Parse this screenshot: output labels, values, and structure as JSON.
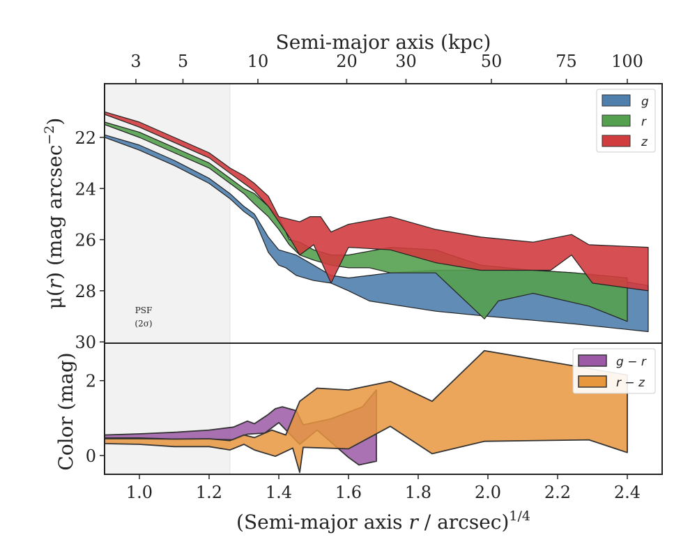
{
  "chart_data": [
    {
      "type": "area",
      "panel": "surface-brightness",
      "top_axis_label": "Semi-major axis (kpc)",
      "top_ticks": [
        {
          "label": "3",
          "x": 0.99
        },
        {
          "label": "5",
          "x": 1.125
        },
        {
          "label": "10",
          "x": 1.34
        },
        {
          "label": "20",
          "x": 1.595
        },
        {
          "label": "30",
          "x": 1.765
        },
        {
          "label": "50",
          "x": 2.01
        },
        {
          "label": "75",
          "x": 2.225
        },
        {
          "label": "100",
          "x": 2.4
        }
      ],
      "ylabel_main": "μ(",
      "ylabel_var": "r",
      "ylabel_rest": ") (mag arcsec",
      "ylabel_exp": "−2",
      "ylabel_close": ")",
      "yticks": [
        "22",
        "24",
        "26",
        "28",
        "30"
      ],
      "ylim": [
        30.05,
        19.9
      ],
      "xlim": [
        0.9,
        2.5
      ],
      "psf_band": {
        "x_max": 1.26,
        "label_line1": "PSF",
        "label_line2": "(2σ)"
      },
      "legend": {
        "position": "top-right",
        "entries": [
          "g",
          "r",
          "z"
        ]
      },
      "colors": {
        "g": "#4f7fad",
        "r": "#55a04f",
        "z": "#d13c3f"
      },
      "series": [
        {
          "name": "g",
          "upper": [
            [
              0.9,
              21.9
            ],
            [
              1.0,
              22.3
            ],
            [
              1.1,
              22.9
            ],
            [
              1.2,
              23.6
            ],
            [
              1.26,
              24.2
            ],
            [
              1.3,
              24.7
            ],
            [
              1.33,
              25.0
            ],
            [
              1.37,
              25.9
            ],
            [
              1.4,
              26.4
            ],
            [
              1.45,
              26.6
            ],
            [
              1.5,
              27.0
            ],
            [
              1.55,
              27.4
            ],
            [
              1.6,
              27.5
            ],
            [
              1.66,
              27.4
            ],
            [
              1.72,
              27.3
            ],
            [
              1.85,
              27.2
            ],
            [
              1.98,
              27.2
            ],
            [
              2.13,
              27.2
            ],
            [
              2.25,
              27.3
            ],
            [
              2.46,
              27.8
            ]
          ],
          "lower": [
            [
              2.46,
              29.6
            ],
            [
              2.25,
              29.3
            ],
            [
              2.0,
              29.0
            ],
            [
              1.85,
              28.8
            ],
            [
              1.66,
              28.4
            ],
            [
              1.6,
              28.0
            ],
            [
              1.55,
              27.7
            ],
            [
              1.5,
              27.6
            ],
            [
              1.45,
              27.4
            ],
            [
              1.42,
              27.1
            ],
            [
              1.4,
              27.0
            ],
            [
              1.37,
              26.5
            ],
            [
              1.33,
              25.2
            ],
            [
              1.3,
              24.9
            ],
            [
              1.26,
              24.4
            ],
            [
              1.2,
              23.8
            ],
            [
              1.1,
              23.1
            ],
            [
              1.0,
              22.5
            ],
            [
              0.9,
              22.0
            ]
          ]
        },
        {
          "name": "r",
          "upper": [
            [
              0.9,
              21.4
            ],
            [
              1.0,
              21.8
            ],
            [
              1.1,
              22.4
            ],
            [
              1.2,
              23.0
            ],
            [
              1.26,
              23.6
            ],
            [
              1.3,
              24.0
            ],
            [
              1.33,
              24.2
            ],
            [
              1.37,
              24.7
            ],
            [
              1.4,
              25.1
            ],
            [
              1.43,
              26.0
            ],
            [
              1.46,
              26.1
            ],
            [
              1.5,
              26.4
            ],
            [
              1.55,
              26.6
            ],
            [
              1.6,
              26.6
            ],
            [
              1.72,
              26.3
            ],
            [
              1.85,
              26.4
            ],
            [
              1.98,
              27.0
            ],
            [
              2.13,
              27.2
            ],
            [
              2.25,
              27.3
            ],
            [
              2.4,
              27.5
            ]
          ],
          "lower": [
            [
              2.4,
              29.2
            ],
            [
              2.29,
              28.6
            ],
            [
              2.13,
              28.1
            ],
            [
              2.03,
              28.4
            ],
            [
              1.99,
              29.1
            ],
            [
              1.85,
              27.3
            ],
            [
              1.72,
              27.3
            ],
            [
              1.66,
              27.1
            ],
            [
              1.6,
              27.1
            ],
            [
              1.55,
              27.0
            ],
            [
              1.5,
              26.8
            ],
            [
              1.46,
              26.6
            ],
            [
              1.43,
              26.2
            ],
            [
              1.4,
              25.6
            ],
            [
              1.37,
              25.1
            ],
            [
              1.33,
              24.6
            ],
            [
              1.3,
              24.2
            ],
            [
              1.26,
              23.8
            ],
            [
              1.2,
              23.2
            ],
            [
              1.1,
              22.6
            ],
            [
              1.0,
              22.0
            ],
            [
              0.9,
              21.5
            ]
          ]
        },
        {
          "name": "z",
          "upper": [
            [
              0.9,
              21.0
            ],
            [
              1.0,
              21.4
            ],
            [
              1.1,
              22.0
            ],
            [
              1.2,
              22.6
            ],
            [
              1.26,
              23.2
            ],
            [
              1.3,
              23.5
            ],
            [
              1.33,
              23.8
            ],
            [
              1.37,
              24.3
            ],
            [
              1.4,
              25.1
            ],
            [
              1.46,
              25.3
            ],
            [
              1.49,
              25.1
            ],
            [
              1.52,
              25.1
            ],
            [
              1.55,
              25.7
            ],
            [
              1.6,
              25.4
            ],
            [
              1.72,
              25.1
            ],
            [
              1.85,
              25.6
            ],
            [
              1.98,
              25.9
            ],
            [
              2.13,
              26.1
            ],
            [
              2.24,
              25.8
            ],
            [
              2.29,
              26.2
            ],
            [
              2.46,
              26.3
            ]
          ],
          "lower": [
            [
              2.46,
              28.0
            ],
            [
              2.3,
              27.7
            ],
            [
              2.24,
              26.6
            ],
            [
              2.18,
              27.2
            ],
            [
              1.98,
              27.2
            ],
            [
              1.85,
              26.9
            ],
            [
              1.72,
              26.4
            ],
            [
              1.6,
              26.3
            ],
            [
              1.55,
              27.7
            ],
            [
              1.5,
              26.2
            ],
            [
              1.46,
              26.6
            ],
            [
              1.43,
              25.9
            ],
            [
              1.4,
              25.3
            ],
            [
              1.37,
              24.7
            ],
            [
              1.33,
              24.1
            ],
            [
              1.3,
              23.8
            ],
            [
              1.26,
              23.4
            ],
            [
              1.2,
              22.8
            ],
            [
              1.1,
              22.2
            ],
            [
              1.0,
              21.6
            ],
            [
              0.9,
              21.1
            ]
          ]
        }
      ]
    },
    {
      "type": "area",
      "panel": "color",
      "ylabel": "Color (mag)",
      "xlabel_main": "(Semi-major axis ",
      "xlabel_var": "r",
      "xlabel_rest": " / arcsec)",
      "xlabel_exp": "1/4",
      "xticks": [
        "1.0",
        "1.2",
        "1.4",
        "1.6",
        "1.8",
        "2.0",
        "2.2",
        "2.4"
      ],
      "xtick_values": [
        1.0,
        1.2,
        1.4,
        1.6,
        1.8,
        2.0,
        2.2,
        2.4
      ],
      "yticks": [
        "0",
        "2"
      ],
      "ytick_values": [
        0,
        2
      ],
      "ylim": [
        -0.5,
        3.0
      ],
      "xlim": [
        0.9,
        2.5
      ],
      "legend": {
        "position": "top-right",
        "entries": [
          "g − r",
          "r − z"
        ]
      },
      "colors": {
        "g-r": "#9b59a6",
        "r-z": "#e8973f"
      },
      "series": [
        {
          "name": "g − r",
          "upper": [
            [
              0.9,
              0.55
            ],
            [
              1.0,
              0.58
            ],
            [
              1.1,
              0.62
            ],
            [
              1.2,
              0.68
            ],
            [
              1.27,
              0.76
            ],
            [
              1.31,
              0.92
            ],
            [
              1.33,
              0.85
            ],
            [
              1.37,
              1.1
            ],
            [
              1.39,
              1.25
            ],
            [
              1.41,
              1.3
            ],
            [
              1.45,
              1.2
            ],
            [
              1.47,
              0.82
            ],
            [
              1.55,
              0.98
            ],
            [
              1.64,
              1.3
            ],
            [
              1.68,
              1.75
            ]
          ],
          "lower": [
            [
              1.68,
              -0.15
            ],
            [
              1.63,
              -0.25
            ],
            [
              1.6,
              -0.05
            ],
            [
              1.51,
              0.68
            ],
            [
              1.46,
              0.3
            ],
            [
              1.4,
              0.88
            ],
            [
              1.36,
              0.6
            ],
            [
              1.31,
              0.57
            ],
            [
              1.27,
              0.42
            ],
            [
              1.2,
              0.44
            ],
            [
              1.1,
              0.44
            ],
            [
              1.0,
              0.47
            ],
            [
              0.9,
              0.47
            ]
          ]
        },
        {
          "name": "r − z",
          "upper": [
            [
              0.9,
              0.45
            ],
            [
              1.0,
              0.45
            ],
            [
              1.1,
              0.44
            ],
            [
              1.2,
              0.45
            ],
            [
              1.26,
              0.4
            ],
            [
              1.3,
              0.55
            ],
            [
              1.33,
              0.48
            ],
            [
              1.38,
              0.68
            ],
            [
              1.42,
              0.55
            ],
            [
              1.46,
              1.45
            ],
            [
              1.51,
              1.8
            ],
            [
              1.6,
              1.75
            ],
            [
              1.72,
              1.98
            ],
            [
              1.84,
              1.45
            ],
            [
              1.99,
              2.8
            ],
            [
              2.4,
              2.15
            ]
          ],
          "lower": [
            [
              2.4,
              0.08
            ],
            [
              2.29,
              0.42
            ],
            [
              1.99,
              0.38
            ],
            [
              1.84,
              0.05
            ],
            [
              1.72,
              0.78
            ],
            [
              1.6,
              0.18
            ],
            [
              1.47,
              0.22
            ],
            [
              1.46,
              -0.45
            ],
            [
              1.44,
              0.2
            ],
            [
              1.39,
              -0.02
            ],
            [
              1.33,
              0.15
            ],
            [
              1.3,
              0.3
            ],
            [
              1.26,
              0.15
            ],
            [
              1.2,
              0.24
            ],
            [
              1.1,
              0.24
            ],
            [
              1.0,
              0.3
            ],
            [
              0.9,
              0.32
            ]
          ]
        }
      ]
    }
  ]
}
